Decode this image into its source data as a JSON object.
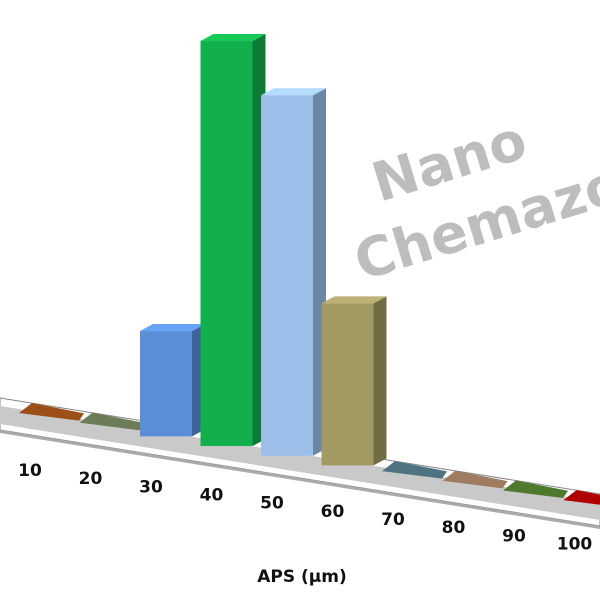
{
  "chart_data": {
    "type": "bar",
    "style": "3d-perspective",
    "title": "",
    "xlabel": "APS (µm)",
    "ylabel": "",
    "y_axis_shown": false,
    "grid": false,
    "legend": "none",
    "categories": [
      "10",
      "20",
      "30",
      "40",
      "50",
      "60",
      "70",
      "80",
      "90",
      "100"
    ],
    "values": [
      0,
      0,
      26,
      100,
      89,
      40,
      0,
      0,
      0,
      0
    ],
    "value_unit": "relative (percent of tallest bar, estimated; no axis printed)",
    "colors": [
      "#9c4f17",
      "#6d7c58",
      "#5a8fd8",
      "#12b04c",
      "#9cbfea",
      "#a39a63",
      "#4d7480",
      "#9f7b60",
      "#4f7a2e",
      "#b00000"
    ],
    "watermark": [
      "Nano",
      "Chemazone"
    ]
  }
}
